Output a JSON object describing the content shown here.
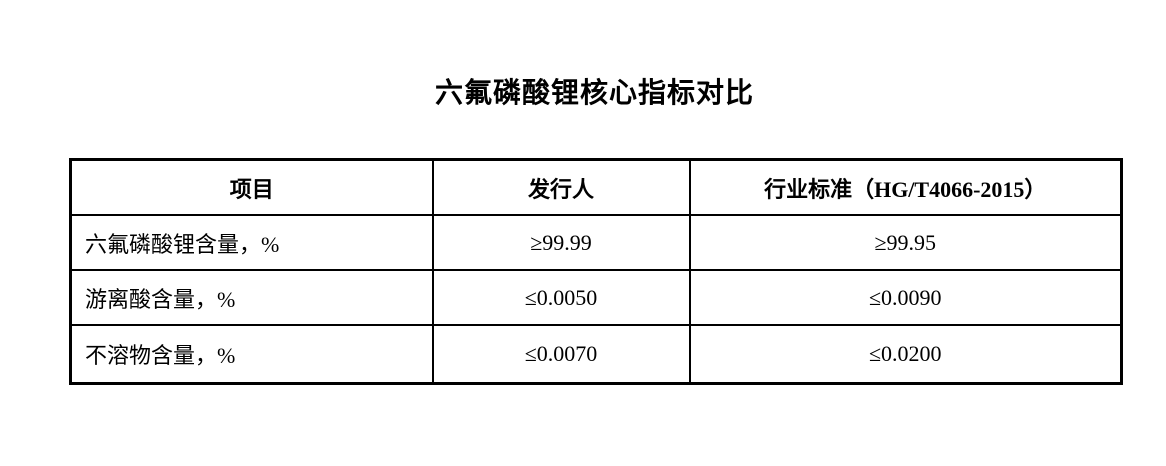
{
  "document": {
    "title": "六氟磷酸锂核心指标对比"
  },
  "table": {
    "headers": [
      "项目",
      "发行人",
      "行业标准（HG/T4066-2015）"
    ],
    "rows": [
      [
        "六氟磷酸锂含量，%",
        "≥99.99",
        "≥99.95"
      ],
      [
        "游离酸含量，%",
        "≤0.0050",
        "≤0.0090"
      ],
      [
        "不溶物含量，%",
        "≤0.0070",
        "≤0.0200"
      ]
    ]
  },
  "colors": {
    "background": "#ffffff",
    "text": "#000000",
    "table_border": "#000000"
  }
}
